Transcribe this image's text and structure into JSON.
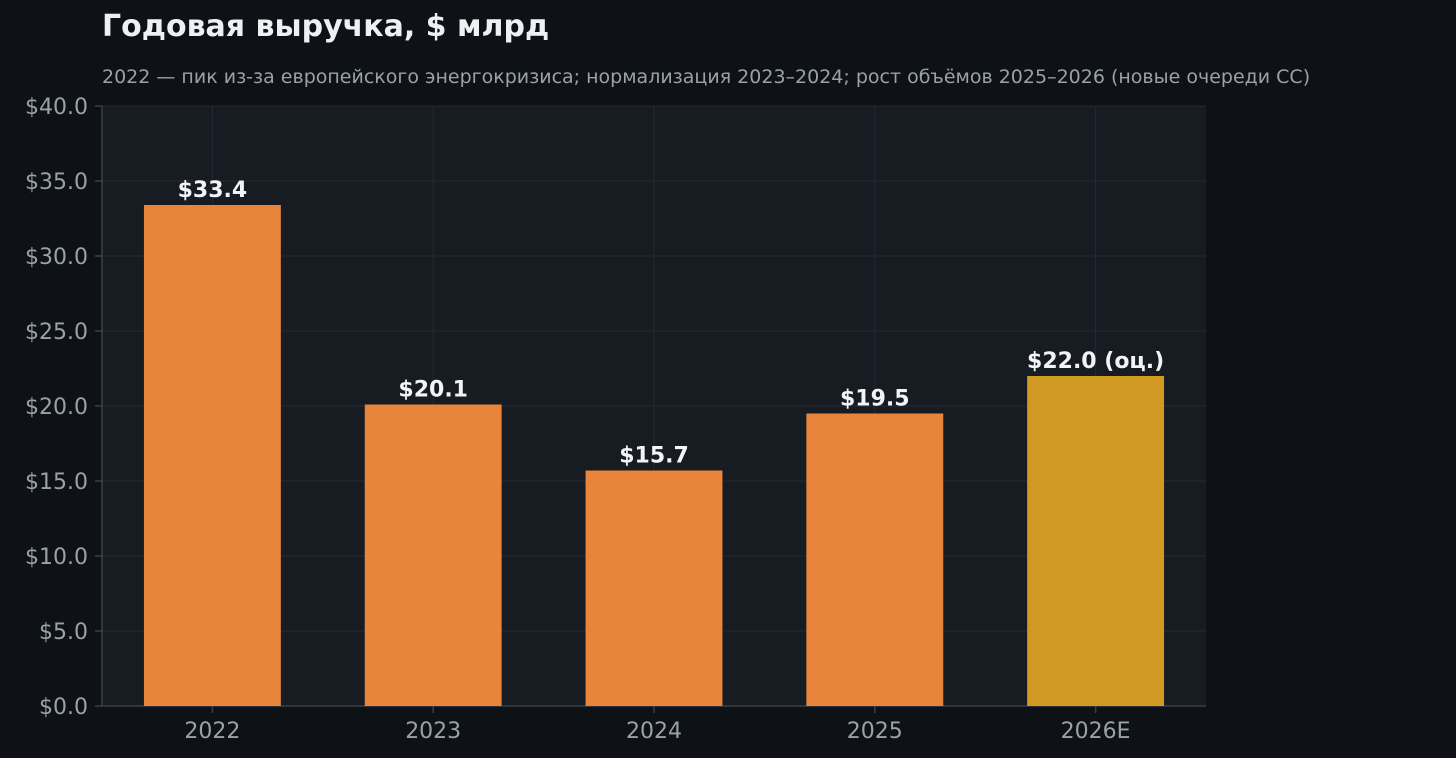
{
  "chart_data": {
    "type": "bar",
    "title": "Годовая выручка, $ млрд",
    "subtitle": "2022 — пик из-за европейского энергокризиса; нормализация 2023–2024; рост объёмов 2025–2026 (новые очереди СС)",
    "categories": [
      "2022",
      "2023",
      "2024",
      "2025",
      "2026E"
    ],
    "values": [
      33.4,
      20.1,
      15.7,
      19.5,
      22.0
    ],
    "value_labels": [
      "$33.4",
      "$20.1",
      "$15.7",
      "$19.5",
      "$22.0 (оц.)"
    ],
    "bar_colors": [
      "#e8853a",
      "#e8853a",
      "#e8853a",
      "#e8853a",
      "#d09a22"
    ],
    "xlabel": "",
    "ylabel": "",
    "ylim": [
      0,
      40
    ],
    "yticks": [
      0,
      5,
      10,
      15,
      20,
      25,
      30,
      35,
      40
    ],
    "ytick_labels": [
      "$0.0",
      "$5.0",
      "$10.0",
      "$15.0",
      "$20.0",
      "$25.0",
      "$30.0",
      "$35.0",
      "$40.0"
    ],
    "grid": true,
    "colors": {
      "page_background": "#0e1216",
      "plot_background": "#171b22",
      "grid": "#262b33",
      "axis": "#3a4049",
      "text_primary": "#eef1f4",
      "text_secondary": "#9aa1aa"
    }
  }
}
